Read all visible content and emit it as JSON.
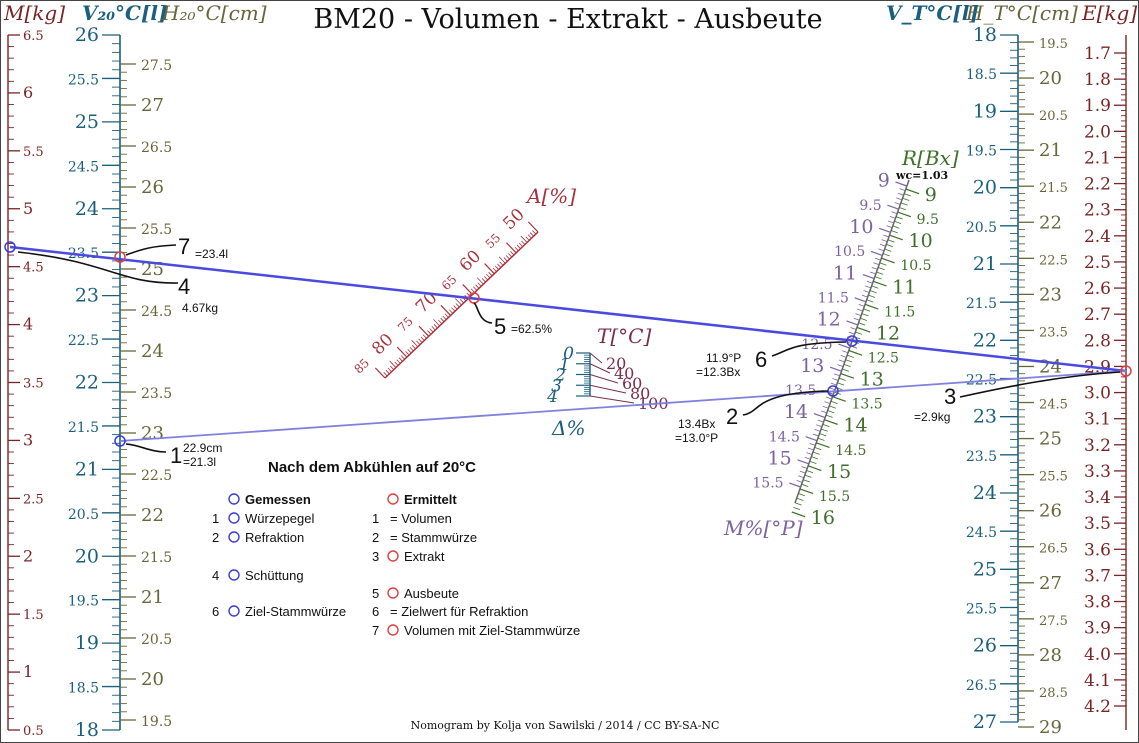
{
  "colors": {
    "mass": "#7a2323",
    "volume20": "#1b5f7e",
    "height20": "#66663a",
    "refraction": "#3f6f2a",
    "plato": "#7d62a0",
    "percent": "#a8323c",
    "temp": "#7a2e4a",
    "delta": "#1b5f7e",
    "measured": "#3c3cd6",
    "computed": "#e04040",
    "line_strong": "#4a4ae0",
    "line_weak": "#8080e0",
    "text": "#111111"
  },
  "title": "BM20 - Volumen - Extrakt - Ausbeute",
  "footer": "Nomogram by Kolja von Sawilski / 2014 / CC BY-SA-NC",
  "axes": {
    "M": {
      "label": "M[kg]",
      "ticks": [
        "6.5",
        "6",
        "5.5",
        "5",
        "4.5",
        "4",
        "3.5",
        "3",
        "2.5",
        "2",
        "1.5",
        "1",
        "0.5"
      ]
    },
    "V20": {
      "label": "V₂₀°C[l]",
      "ticks": [
        "26",
        "25.5",
        "25",
        "24.5",
        "24",
        "23.5",
        "23",
        "22.5",
        "22",
        "21.5",
        "21",
        "20.5",
        "20",
        "19.5",
        "19",
        "18.5",
        "18"
      ]
    },
    "H20": {
      "label": "H₂₀°C[cm]",
      "ticks": [
        "27.5",
        "27",
        "26.5",
        "26",
        "25.5",
        "25",
        "24.5",
        "24",
        "23.5",
        "23",
        "22.5",
        "22",
        "21.5",
        "21",
        "20.5",
        "20",
        "19.5"
      ]
    },
    "VT": {
      "label": "V_T°C[l]",
      "ticks": [
        "18",
        "18.5",
        "19",
        "19.5",
        "20",
        "20.5",
        "21",
        "21.5",
        "22",
        "22.5",
        "23",
        "23.5",
        "24",
        "24.5",
        "25",
        "25.5",
        "26",
        "26.5",
        "27"
      ]
    },
    "HT": {
      "label": "H_T°C[cm]",
      "ticks": [
        "19.5",
        "20",
        "20.5",
        "21",
        "21.5",
        "22",
        "22.5",
        "23",
        "23.5",
        "24",
        "24.5",
        "25",
        "25.5",
        "26",
        "26.5",
        "27",
        "27.5",
        "28",
        "28.5",
        "29"
      ]
    },
    "E": {
      "label": "E[kg]",
      "ticks": [
        "1.7",
        "1.8",
        "1.9",
        "2.0",
        "2.1",
        "2.2",
        "2.3",
        "2.4",
        "2.5",
        "2.6",
        "2.7",
        "2.8",
        "2.9",
        "3.0",
        "3.1",
        "3.2",
        "3.3",
        "3.4",
        "3.5",
        "3.6",
        "3.7",
        "3.8",
        "3.9",
        "4.0",
        "4.1",
        "4.2"
      ]
    },
    "A": {
      "label": "A[%]",
      "ticks": [
        "50",
        "55",
        "60",
        "65",
        "70",
        "75",
        "80",
        "85"
      ]
    },
    "R": {
      "label": "R[Bx]",
      "wc": "wc=1.03",
      "ticks": [
        "9",
        "9.5",
        "10",
        "10.5",
        "11",
        "11.5",
        "12",
        "12.5",
        "13",
        "13.5",
        "14",
        "14.5",
        "15",
        "15.5",
        "16"
      ]
    },
    "MP": {
      "label": "M%[°P]",
      "ticks": [
        "9",
        "9.5",
        "10",
        "10.5",
        "11",
        "11.5",
        "12",
        "12.5",
        "13",
        "13.5",
        "14",
        "14.5",
        "15",
        "15.5"
      ]
    },
    "T": {
      "label": "T[°C]",
      "ticks": [
        "20",
        "40",
        "60",
        "80",
        "100"
      ]
    },
    "D": {
      "label": "Δ%",
      "ticks": [
        "0",
        "1",
        "2",
        "3",
        "4"
      ]
    }
  },
  "points": {
    "p1": {
      "num": "1",
      "line1": "22.9cm",
      "line2": "=21.3l"
    },
    "p2": {
      "num": "2",
      "line1": "13.4Bx",
      "line2": "=13.0°P"
    },
    "p3": {
      "num": "3",
      "line1": "=2.9kg"
    },
    "p4": {
      "num": "4",
      "line1": "4.67kg"
    },
    "p5": {
      "num": "5",
      "line1": "=62.5%"
    },
    "p6": {
      "num": "6",
      "line1": "11.9°P",
      "line2": "=12.3Bx"
    },
    "p7": {
      "num": "7",
      "line1": "=23.4l"
    }
  },
  "legend": {
    "heading": "Nach dem Abkühlen auf 20°C",
    "measured_title": "Gemessen",
    "computed_title": "Ermittelt",
    "measured": [
      {
        "num": "1",
        "label": "Würzepegel"
      },
      {
        "num": "2",
        "label": "Refraktion"
      },
      {
        "num": "4",
        "label": "Schüttung"
      },
      {
        "num": "6",
        "label": "Ziel-Stammwürze"
      }
    ],
    "computed": [
      {
        "num": "1",
        "label": "= Volumen"
      },
      {
        "num": "2",
        "label": "= Stammwürze"
      },
      {
        "num": "3",
        "label": "Extrakt"
      },
      {
        "num": "5",
        "label": "Ausbeute"
      },
      {
        "num": "6",
        "label": "= Zielwert für Refraktion"
      },
      {
        "num": "7",
        "label": "Volumen mit Ziel-Stammwürze"
      }
    ]
  }
}
